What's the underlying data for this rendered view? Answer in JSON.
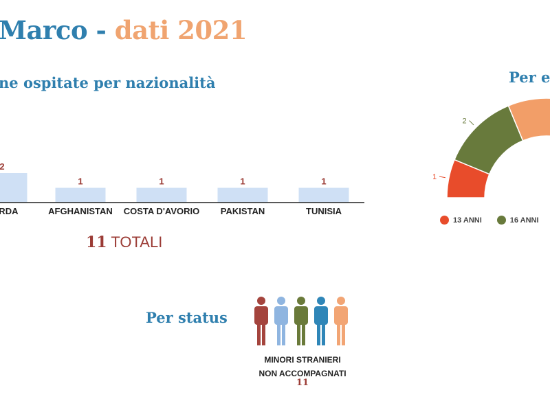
{
  "title": {
    "part1": "Marco",
    "separator": " - ",
    "part2": "dati 2021"
  },
  "section_nationality": "ne ospitate per nazionalità",
  "section_age": "Per et",
  "section_status": "Per status",
  "totals": {
    "number": "11",
    "label": "TOTALI"
  },
  "status": {
    "line1": "MINORI STRANIERI",
    "line2": "NON ACCOMPAGNATI",
    "count": "11"
  },
  "colors": {
    "blue": "#2f7fae",
    "orange": "#f0a470",
    "bar": "#cfe0f5",
    "red_text": "#9b3b35"
  },
  "chart_data": [
    {
      "type": "bar",
      "categories": [
        "CURDA",
        "AFGHANISTAN",
        "COSTA D'AVORIO",
        "PAKISTAN",
        "TUNISIA"
      ],
      "values": [
        2,
        1,
        1,
        1,
        1
      ],
      "value_labels": [
        "2",
        "1",
        "1",
        "1",
        "1"
      ],
      "ylim": [
        0,
        2
      ]
    },
    {
      "type": "pie",
      "style": "semi-donut",
      "categories": [
        "13 ANNI",
        "16 ANNI",
        ""
      ],
      "values": [
        1,
        2,
        5
      ],
      "value_labels": [
        "1",
        "2",
        ""
      ],
      "colors": [
        "#e84c2b",
        "#687a3c",
        "#f29e68"
      ],
      "legend_labels": [
        "13 ANNI",
        "16 ANNI"
      ]
    }
  ],
  "people_icons": {
    "count": 5,
    "colors": [
      "#a4443d",
      "#8fb5e0",
      "#6a7a3a",
      "#2f86b8",
      "#f2a574"
    ]
  }
}
